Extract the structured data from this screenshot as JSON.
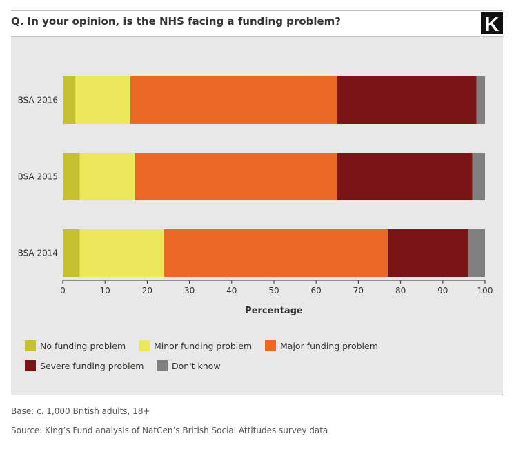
{
  "header": {
    "question": "Q. In your opinion, is the NHS facing a funding problem?",
    "logo_letter": "K"
  },
  "chart_data": {
    "type": "bar",
    "orientation": "horizontal",
    "stacked": true,
    "categories": [
      "BSA 2016",
      "BSA 2015",
      "BSA 2014"
    ],
    "series": [
      {
        "name": "No funding problem",
        "color": "#c4c030",
        "values": [
          3,
          4,
          4
        ]
      },
      {
        "name": "Minor funding problem",
        "color": "#ece85c",
        "values": [
          13,
          13,
          20
        ]
      },
      {
        "name": "Major funding problem",
        "color": "#ea6a25",
        "values": [
          49,
          48,
          53
        ]
      },
      {
        "name": "Severe funding problem",
        "color": "#7b1414",
        "values": [
          33,
          32,
          19
        ]
      },
      {
        "name": "Don't know",
        "color": "#808080",
        "values": [
          2,
          3,
          4
        ]
      }
    ],
    "xlabel": "Percentage",
    "ylabel": "",
    "xlim": [
      0,
      100
    ],
    "xticks": [
      0,
      10,
      20,
      30,
      40,
      50,
      60,
      70,
      80,
      90,
      100
    ],
    "grid": false,
    "legend_position": "bottom"
  },
  "footer": {
    "base": "Base: c. 1,000 British adults, 18+",
    "source": "Source: King’s Fund analysis of NatCen’s British Social Attitudes survey data"
  }
}
